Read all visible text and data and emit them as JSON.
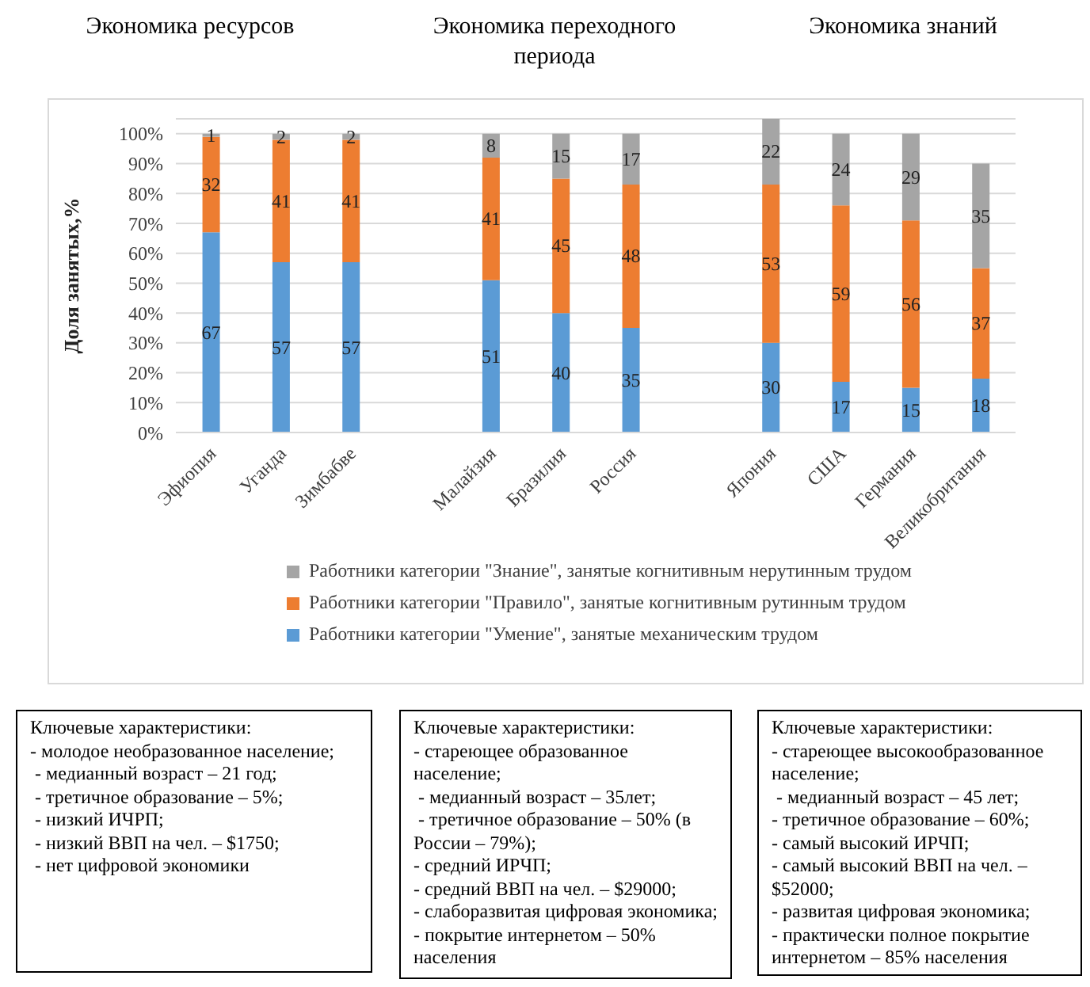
{
  "chart_data": {
    "type": "bar",
    "stacked": true,
    "ylabel": "Доля занятых,%",
    "categories": [
      "Эфиопия",
      "Уганда",
      "Зимбабве",
      null,
      "Малайзия",
      "Бразилия",
      "Россия",
      null,
      "Япония",
      "США",
      "Германия",
      "Великобритания"
    ],
    "series": [
      {
        "name": "Работники категории \"Умение\", занятые механическим трудом",
        "color": "#5b9bd5",
        "values": [
          67,
          57,
          57,
          null,
          51,
          40,
          35,
          null,
          30,
          17,
          15,
          18
        ],
        "value_labels": [
          "67",
          "57",
          "57",
          null,
          "51",
          "40",
          "35",
          null,
          "30",
          "17",
          "15",
          "18"
        ]
      },
      {
        "name": "Работники категории \"Правило\", занятые когнитивным рутинным трудом",
        "color": "#ed7d31",
        "values": [
          32,
          41,
          41,
          null,
          41,
          45,
          48,
          null,
          53,
          59,
          56,
          37
        ],
        "value_labels": [
          "32",
          "41",
          "41",
          null,
          "41",
          "45",
          "48",
          null,
          "53",
          "59",
          "56",
          "37"
        ]
      },
      {
        "name": "Работники категории \"Знание\", занятые когнитивным нерутинным трудом",
        "color": "#a5a5a5",
        "values": [
          1,
          2,
          2,
          null,
          8,
          15,
          17,
          null,
          22,
          24,
          29,
          35
        ],
        "value_labels": [
          "1",
          "2",
          "2",
          null,
          "8",
          "15",
          "17",
          null,
          "22",
          "24",
          "29",
          "35"
        ]
      }
    ],
    "ylim": [
      0,
      105
    ],
    "yticks": [
      {
        "value": 0,
        "label": "0%"
      },
      {
        "value": 10,
        "label": "10%"
      },
      {
        "value": 20,
        "label": "20%"
      },
      {
        "value": 30,
        "label": "30%"
      },
      {
        "value": 40,
        "label": "40%"
      },
      {
        "value": 50,
        "label": "50%"
      },
      {
        "value": 60,
        "label": "60%"
      },
      {
        "value": 70,
        "label": "70%"
      },
      {
        "value": 80,
        "label": "80%"
      },
      {
        "value": 90,
        "label": "90%"
      },
      {
        "value": 100,
        "label": "100%"
      }
    ],
    "grid": "y",
    "legend": "bottom",
    "annotations": [
      "Экономика ресурсов",
      "Экономика переходного периода",
      "Экономика знаний",
      "Ключевые характеристики:\n- молодое необразованное население;\n - медианный возраст – 21 год;\n - третичное образование – 5%;\n - низкий ИЧРП;\n - низкий ВВП на чел. – $1750;\n - нет цифровой экономики",
      "Ключевые характеристики:\n- стареющее образованное население;\n - медианный возраст – 35лет;\n - третичное образование – 50% (в России – 79%);\n- средний ИРЧП;\n- средний ВВП на чел. – $29000;\n- слаборазвитая цифровая экономика;\n- покрытие интернетом – 50% населения",
      "Ключевые характеристики:\n- стареющее высокообразованное население;\n - медианный возраст – 45 лет;\n- третичное образование – 60%;\n- самый высокий ИРЧП;\n- самый высокий ВВП на чел. – $52000;\n- развитая цифровая экономика;\n- практически полное покрытие интернетом – 85% населения"
    ]
  }
}
